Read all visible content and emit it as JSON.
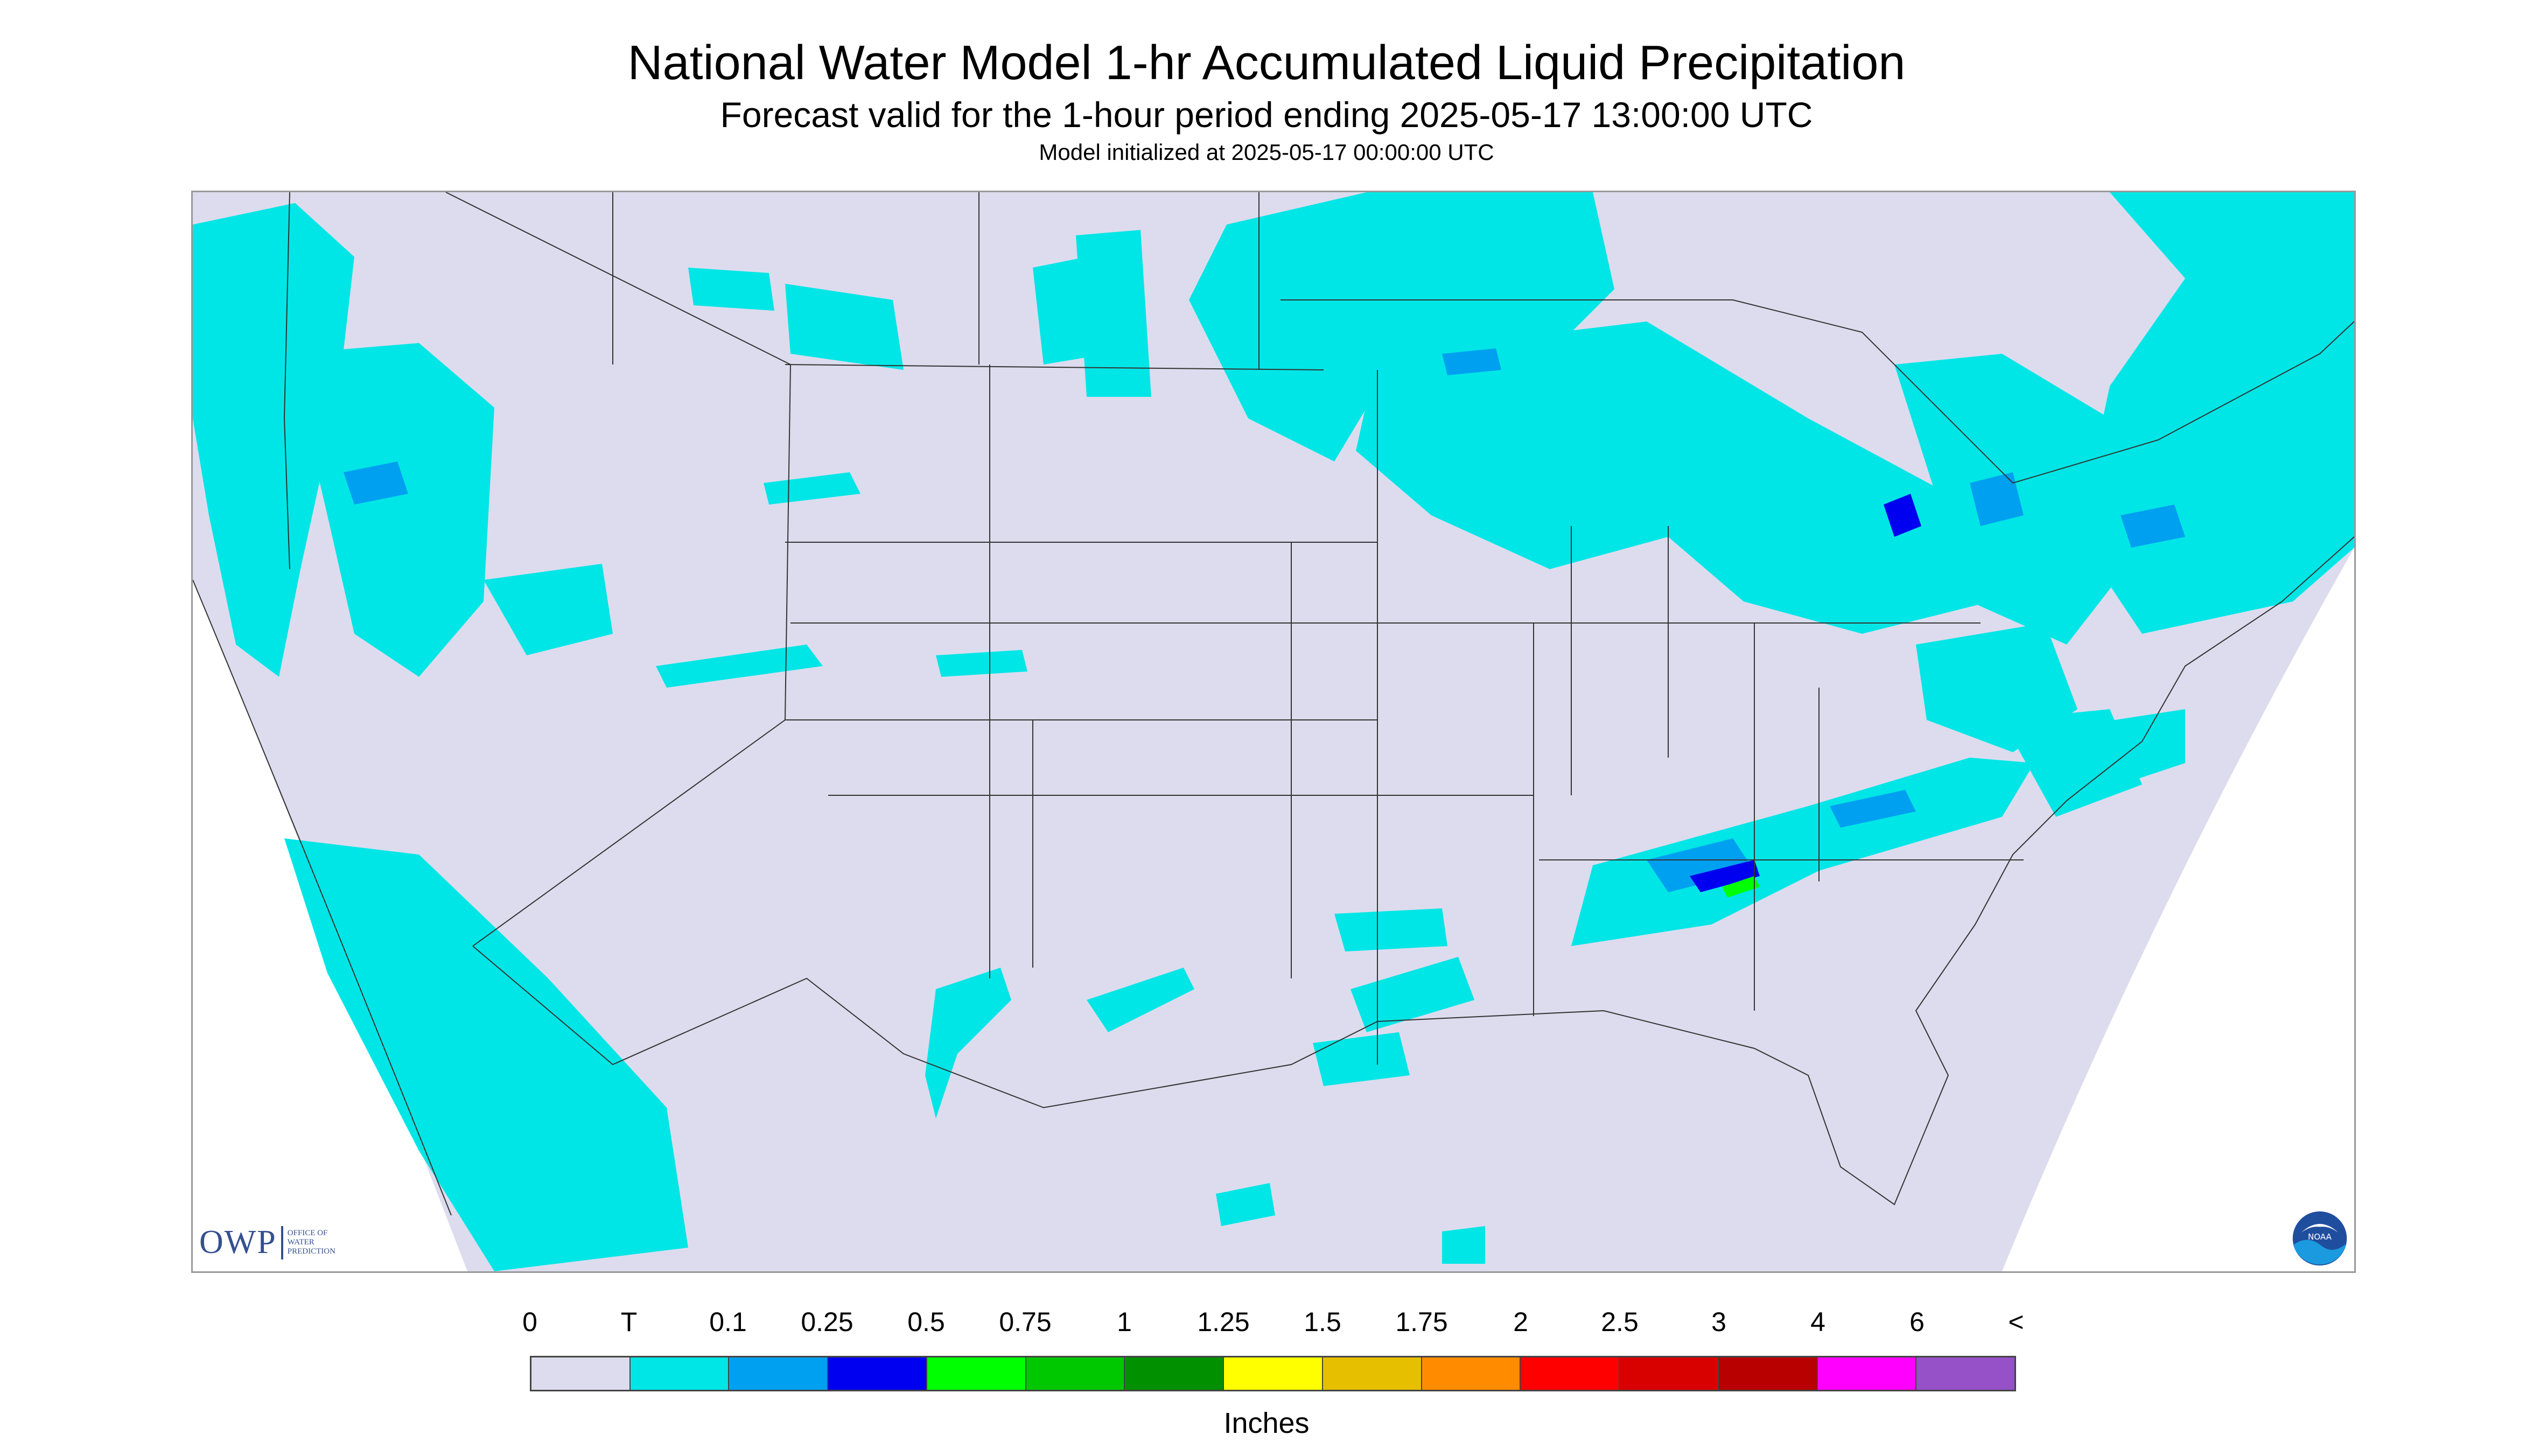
{
  "header": {
    "title": "National Water Model 1-hr Accumulated Liquid Precipitation",
    "subtitle": "Forecast valid for the 1-hour period ending 2025-05-17 13:00:00 UTC",
    "note": "Model initialized at 2025-05-17 00:00:00 UTC"
  },
  "logos": {
    "owp_text": "OWP",
    "owp_sub": "OFFICE OF\nWATER\nPREDICTION",
    "noaa_text": "NOAA"
  },
  "legend": {
    "units": "Inches",
    "tick_labels": [
      "0",
      "T",
      "0.1",
      "0.25",
      "0.5",
      "0.75",
      "1",
      "1.25",
      "1.5",
      "1.75",
      "2",
      "2.5",
      "3",
      "4",
      "6",
      "<"
    ],
    "colors": [
      "#dcdcee",
      "#00e6e6",
      "#00a0f0",
      "#0000f0",
      "#00ff00",
      "#00c800",
      "#009000",
      "#ffff00",
      "#e6bf00",
      "#ff8c00",
      "#ff0000",
      "#d90000",
      "#b80000",
      "#ff00ff",
      "#9650c8"
    ]
  },
  "map": {
    "domain_color": "#dcdcee",
    "outside_color": "#ffffff",
    "border_color": "#333333",
    "colors": {
      "light": "#00e6e6",
      "medium": "#00a0f0",
      "heavy": "#0000f0",
      "green": "#00ff00",
      "yellow": "#ffff00"
    }
  }
}
